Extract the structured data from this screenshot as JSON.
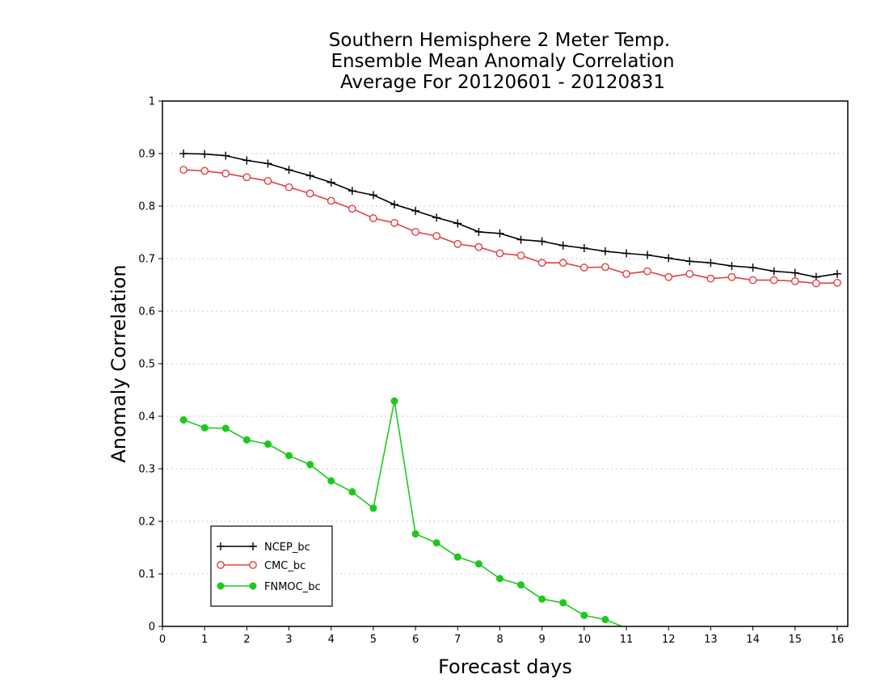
{
  "chart_data": {
    "type": "line",
    "title": [
      "Southern Hemisphere 2 Meter Temp.",
      "Ensemble Mean Anomaly Correlation",
      "Average For 20120601 - 20120831"
    ],
    "xlabel": "Forecast days",
    "ylabel": "Anomaly Correlation",
    "xlim": [
      0,
      16.25
    ],
    "ylim": [
      0,
      1
    ],
    "xticks": [
      0,
      1,
      2,
      3,
      4,
      5,
      6,
      7,
      8,
      9,
      10,
      11,
      12,
      13,
      14,
      15,
      16
    ],
    "yticks": [
      0,
      0.1,
      0.2,
      0.3,
      0.4,
      0.5,
      0.6,
      0.7,
      0.8,
      0.9,
      1
    ],
    "ytick_labels": [
      "0",
      "0.1",
      "0.2",
      "0.3",
      "0.4",
      "0.5",
      "0.6",
      "0.7",
      "0.8",
      "0.9",
      "1"
    ],
    "grid": "horizontal dotted",
    "legend_position": "bottom-left",
    "series": [
      {
        "name": "NCEP_bc",
        "color": "#000000",
        "marker": "plus",
        "x": [
          0.5,
          1,
          1.5,
          2,
          2.5,
          3,
          3.5,
          4,
          4.5,
          5,
          5.5,
          6,
          6.5,
          7,
          7.5,
          8,
          8.5,
          9,
          9.5,
          10,
          10.5,
          11,
          11.5,
          12,
          12.5,
          13,
          13.5,
          14,
          14.5,
          15,
          15.5,
          16
        ],
        "values": [
          0.9,
          0.899,
          0.896,
          0.887,
          0.881,
          0.869,
          0.858,
          0.845,
          0.829,
          0.821,
          0.803,
          0.791,
          0.778,
          0.767,
          0.751,
          0.748,
          0.736,
          0.733,
          0.725,
          0.72,
          0.714,
          0.71,
          0.707,
          0.701,
          0.695,
          0.692,
          0.686,
          0.683,
          0.676,
          0.673,
          0.665,
          0.671
        ]
      },
      {
        "name": "CMC_bc",
        "color": "#e04040",
        "marker": "open-circle",
        "x": [
          0.5,
          1,
          1.5,
          2,
          2.5,
          3,
          3.5,
          4,
          4.5,
          5,
          5.5,
          6,
          6.5,
          7,
          7.5,
          8,
          8.5,
          9,
          9.5,
          10,
          10.5,
          11,
          11.5,
          12,
          12.5,
          13,
          13.5,
          14,
          14.5,
          15,
          15.5,
          16
        ],
        "values": [
          0.869,
          0.867,
          0.862,
          0.855,
          0.848,
          0.836,
          0.824,
          0.81,
          0.795,
          0.777,
          0.768,
          0.751,
          0.743,
          0.728,
          0.722,
          0.71,
          0.706,
          0.692,
          0.692,
          0.683,
          0.684,
          0.671,
          0.676,
          0.665,
          0.671,
          0.662,
          0.665,
          0.659,
          0.659,
          0.657,
          0.653,
          0.654
        ]
      },
      {
        "name": "FNMOC_bc",
        "color": "#1ec81e",
        "marker": "filled-circle",
        "x": [
          0.5,
          1,
          1.5,
          2,
          2.5,
          3,
          3.5,
          4,
          4.5,
          5,
          5.5,
          6,
          6.5,
          7,
          7.5,
          8,
          8.5,
          9,
          9.5,
          10,
          10.5,
          10.9
        ],
        "values": [
          0.393,
          0.378,
          0.377,
          0.355,
          0.347,
          0.325,
          0.308,
          0.277,
          0.256,
          0.225,
          0.429,
          0.176,
          0.159,
          0.132,
          0.119,
          0.091,
          0.079,
          0.052,
          0.045,
          0.021,
          0.013,
          0
        ]
      }
    ]
  }
}
